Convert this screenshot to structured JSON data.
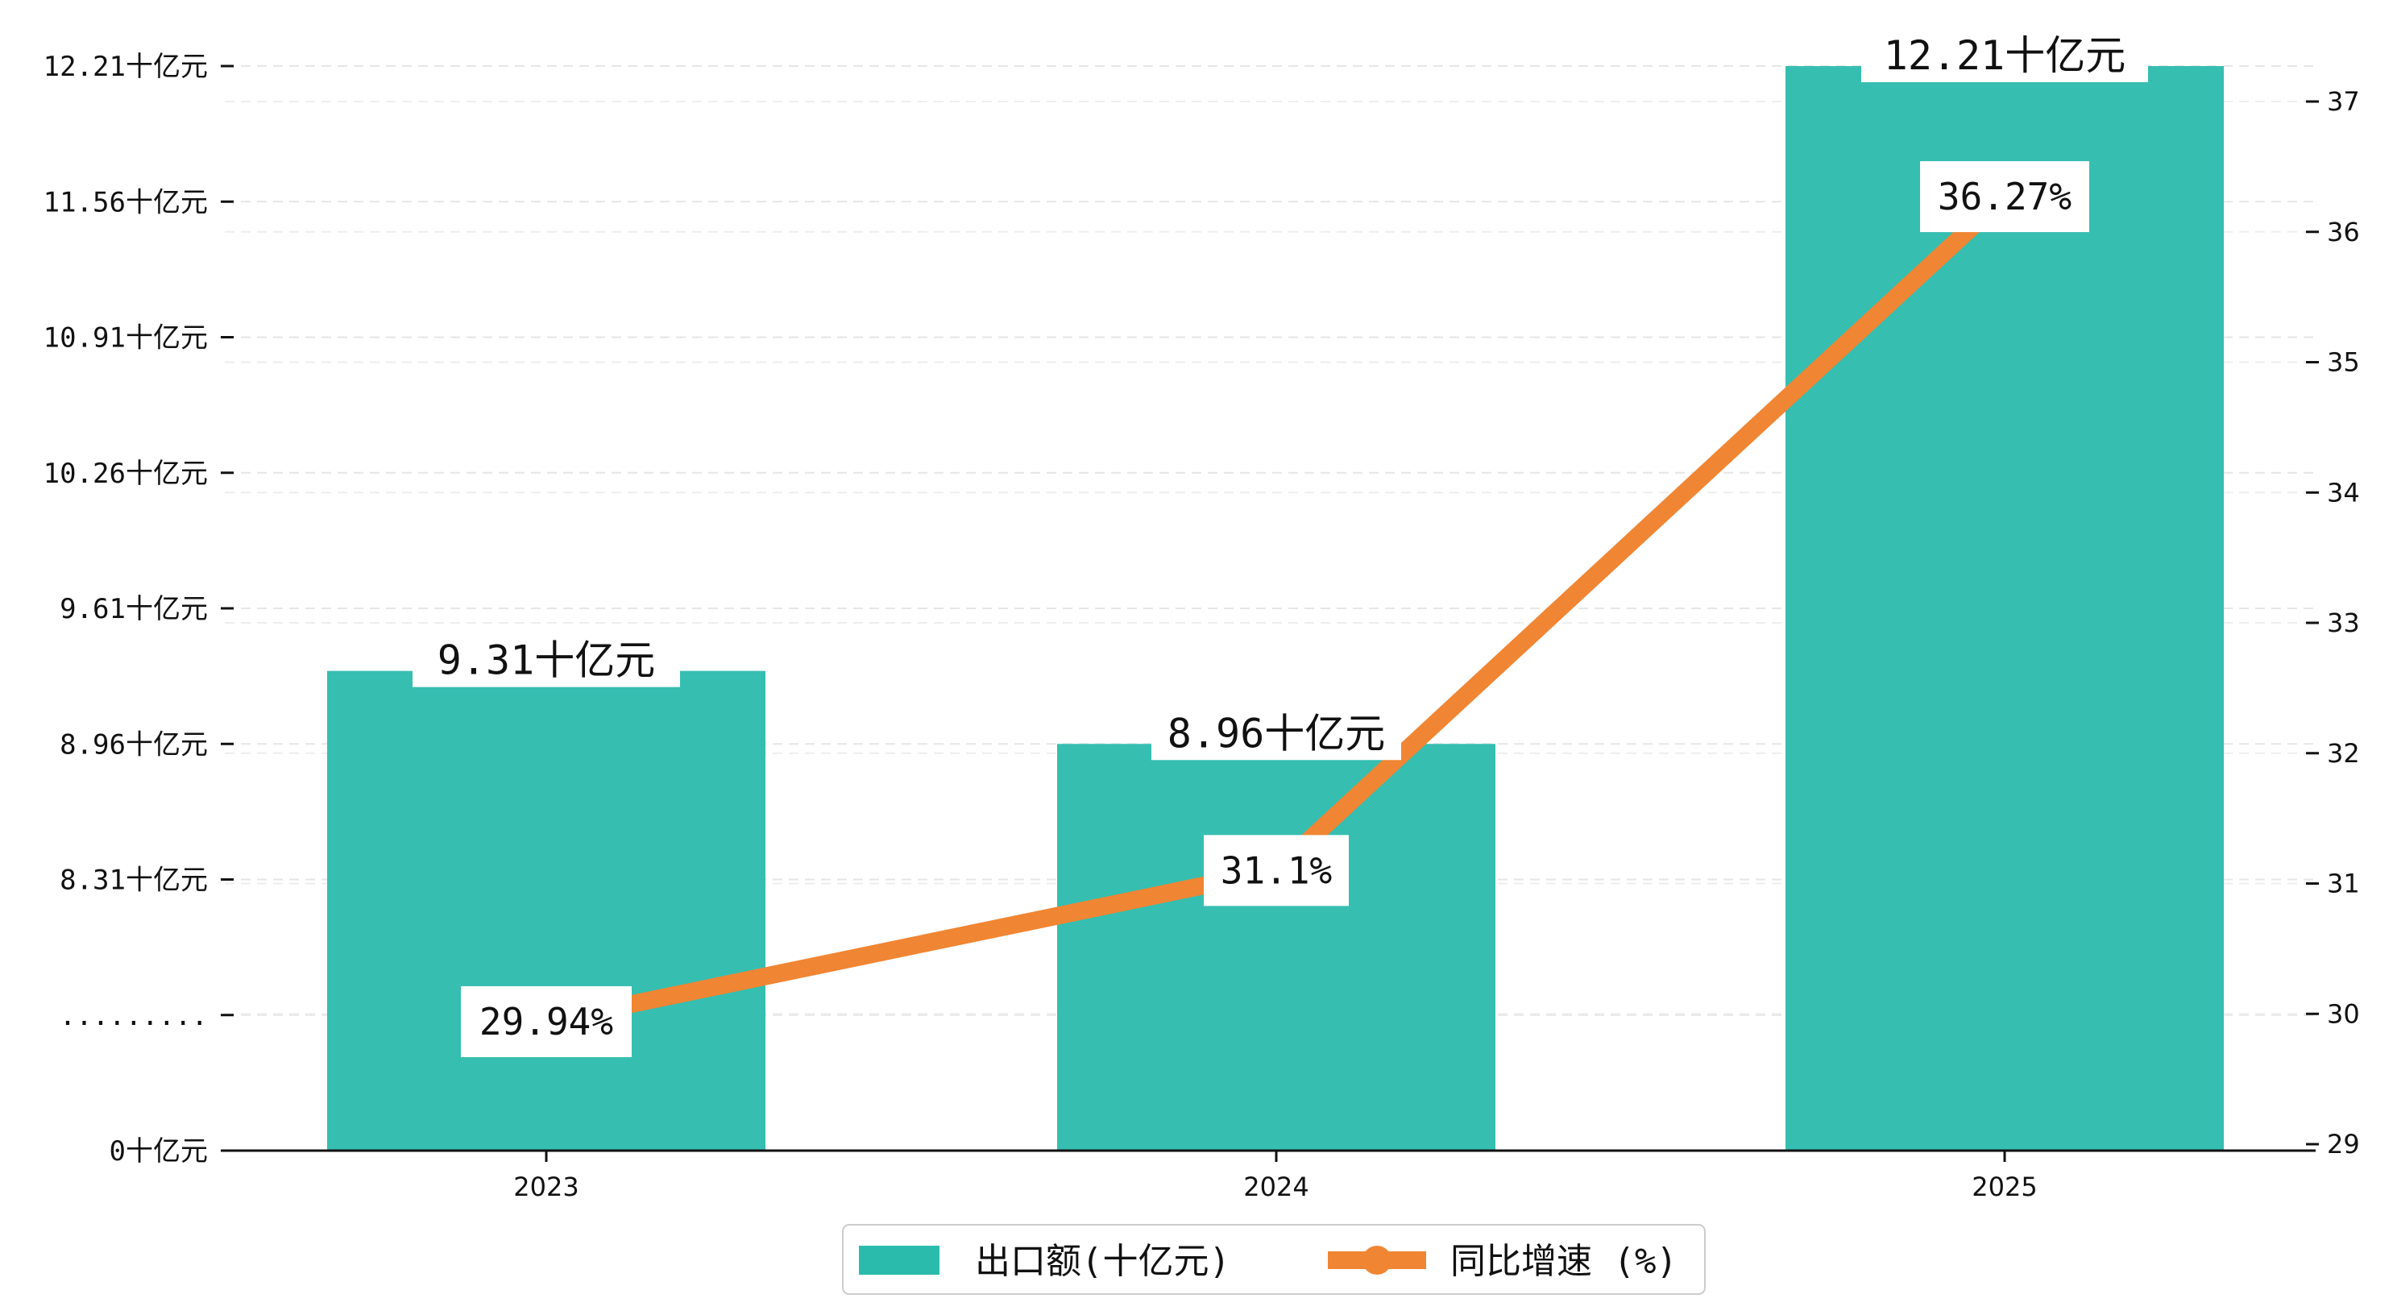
{
  "chart_data": {
    "type": "bar+line",
    "categories": [
      "2023",
      "2024",
      "2025"
    ],
    "series": [
      {
        "name": "出口额(十亿元)",
        "type": "bar",
        "axis": "left",
        "values": [
          9.31,
          8.96,
          12.21
        ],
        "labels": [
          "9.31十亿元",
          "8.96十亿元",
          "12.21十亿元"
        ],
        "color": "#2bbbad"
      },
      {
        "name": "同比增速 (%)",
        "type": "line",
        "axis": "right",
        "values": [
          29.94,
          31.1,
          36.27
        ],
        "labels": [
          "29.94%",
          "31.1%",
          "36.27%"
        ],
        "color": "#f08533"
      }
    ],
    "left_axis": {
      "broken": true,
      "ticks": [
        {
          "value": 0,
          "label": "0十亿元"
        },
        {
          "value": 7.66,
          "label": "........."
        },
        {
          "value": 8.31,
          "label": "8.31十亿元"
        },
        {
          "value": 8.96,
          "label": "8.96十亿元"
        },
        {
          "value": 9.61,
          "label": "9.61十亿元"
        },
        {
          "value": 10.26,
          "label": "10.26十亿元"
        },
        {
          "value": 10.91,
          "label": "10.91十亿元"
        },
        {
          "value": 11.56,
          "label": "11.56十亿元"
        },
        {
          "value": 12.21,
          "label": "12.21十亿元"
        }
      ]
    },
    "right_axis": {
      "ylim": [
        29,
        37.4
      ],
      "ticks": [
        29,
        30,
        31,
        32,
        33,
        34,
        35,
        36,
        37
      ]
    },
    "grid": "horizontal-dashed",
    "legend": "bottom-center"
  }
}
